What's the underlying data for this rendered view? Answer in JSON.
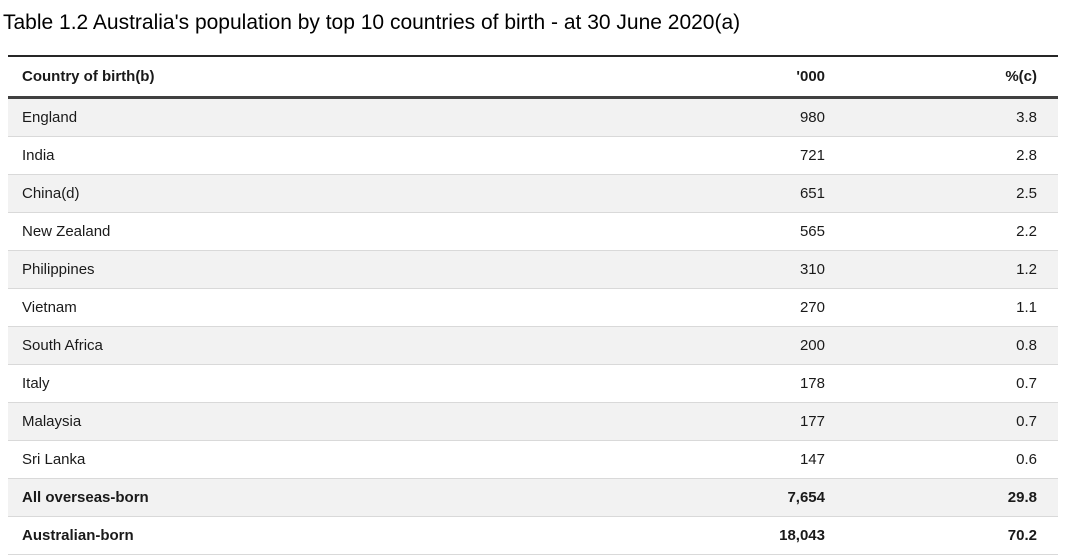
{
  "chart_data": {
    "type": "table",
    "title": "Table 1.2 Australia's population by top 10 countries of birth - at 30 June 2020(a)",
    "columns": [
      "Country of birth(b)",
      "'000",
      "%(c)"
    ],
    "rows": [
      {
        "country": "England",
        "thousands": "980",
        "percent": "3.8",
        "bold": false
      },
      {
        "country": "India",
        "thousands": "721",
        "percent": "2.8",
        "bold": false
      },
      {
        "country": "China(d)",
        "thousands": "651",
        "percent": "2.5",
        "bold": false
      },
      {
        "country": "New Zealand",
        "thousands": "565",
        "percent": "2.2",
        "bold": false
      },
      {
        "country": "Philippines",
        "thousands": "310",
        "percent": "1.2",
        "bold": false
      },
      {
        "country": "Vietnam",
        "thousands": "270",
        "percent": "1.1",
        "bold": false
      },
      {
        "country": "South Africa",
        "thousands": "200",
        "percent": "0.8",
        "bold": false
      },
      {
        "country": "Italy",
        "thousands": "178",
        "percent": "0.7",
        "bold": false
      },
      {
        "country": "Malaysia",
        "thousands": "177",
        "percent": "0.7",
        "bold": false
      },
      {
        "country": "Sri Lanka",
        "thousands": "147",
        "percent": "0.6",
        "bold": false
      },
      {
        "country": "All overseas-born",
        "thousands": "7,654",
        "percent": "29.8",
        "bold": true
      },
      {
        "country": "Australian-born",
        "thousands": "18,043",
        "percent": "70.2",
        "bold": true
      }
    ],
    "layout": {
      "striped": true,
      "column_alignment": [
        "left",
        "right",
        "right"
      ]
    }
  },
  "colors": {
    "row_stripe": "#f2f2f2",
    "row_border": "#d9d9d9",
    "top_rule": "#262626",
    "header_rule": "#404040",
    "text": "#1a1a1a"
  }
}
